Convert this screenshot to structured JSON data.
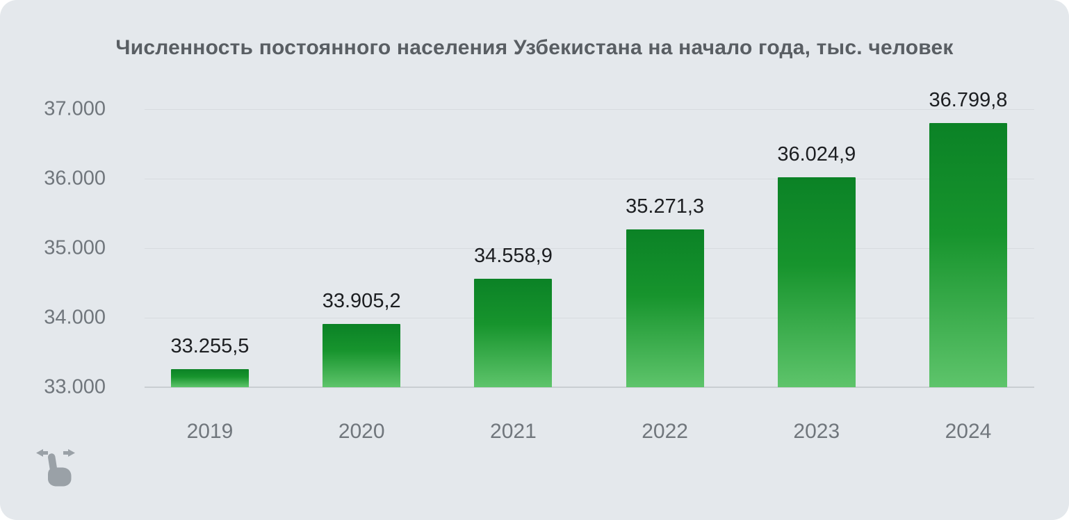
{
  "chart_data": {
    "type": "bar",
    "title": "Численность постоянного населения Узбекистана на начало года, тыс. человек",
    "categories": [
      "2019",
      "2020",
      "2021",
      "2022",
      "2023",
      "2024"
    ],
    "values": [
      33255.5,
      33905.2,
      34558.9,
      35271.3,
      36024.9,
      36799.8
    ],
    "value_labels": [
      "33.255,5",
      "33.905,2",
      "34.558,9",
      "35.271,3",
      "36.024,9",
      "36.799,8"
    ],
    "xlabel": "",
    "ylabel": "",
    "ylim": [
      33000,
      37000
    ],
    "yticks": [
      {
        "value": 37000,
        "label": "37.000"
      },
      {
        "value": 36000,
        "label": "36.000"
      },
      {
        "value": 35000,
        "label": "35.000"
      },
      {
        "value": 34000,
        "label": "34.000"
      },
      {
        "value": 33000,
        "label": "33.000"
      }
    ],
    "grid": true,
    "legend": "none",
    "style": {
      "background": "#e4e8ec",
      "bar_gradient_top": "#0b8226",
      "bar_gradient_mid": "#17942d",
      "bar_gradient_bottom": "#5ec46b",
      "gridline_color": "#d7dbdf",
      "axis_line_color": "#c9ced2",
      "title_color": "#595e63",
      "tick_label_color": "#70767c",
      "value_label_color": "#1c1e21",
      "hint_icon_color": "#9aa1a7"
    }
  },
  "hint": {
    "icon": "swipe-horizontal-gesture-icon"
  }
}
